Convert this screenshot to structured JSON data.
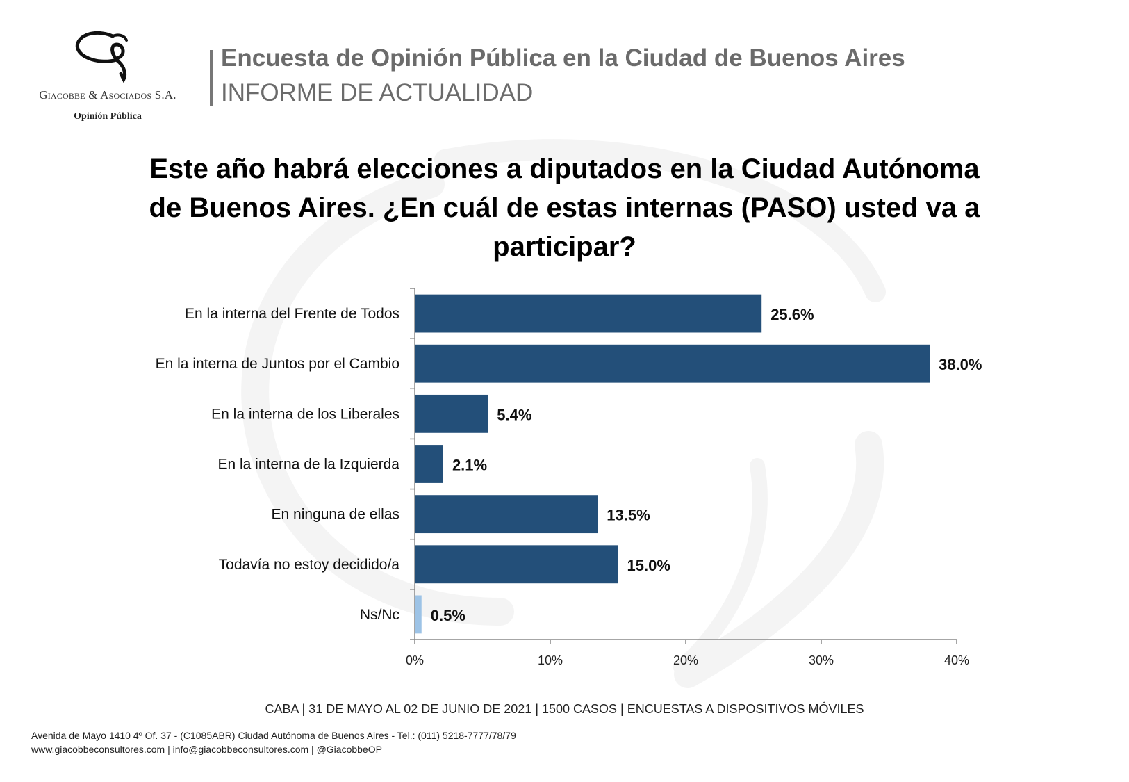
{
  "header": {
    "company_name": "Giacobbe & Asociados S.A.",
    "company_tagline": "Opinión Pública",
    "title": "Encuesta de Opinión Pública en la Ciudad de Buenos Aires",
    "subtitle": "INFORME DE ACTUALIDAD"
  },
  "question": "Este año habrá elecciones a diputados en la Ciudad Autónoma de Buenos Aires. ¿En cuál de estas internas (PASO) usted va a participar?",
  "chart_data": {
    "type": "bar",
    "orientation": "horizontal",
    "categories": [
      "En la interna del Frente de Todos",
      "En la interna de Juntos por el Cambio",
      "En la interna de los Liberales",
      "En la interna de la Izquierda",
      "En ninguna de ellas",
      "Todavía no estoy decidido/a",
      "Ns/Nc"
    ],
    "values": [
      25.6,
      38.0,
      5.4,
      2.1,
      13.5,
      15.0,
      0.5
    ],
    "value_labels": [
      "25.6%",
      "38.0%",
      "5.4%",
      "2.1%",
      "13.5%",
      "15.0%",
      "0.5%"
    ],
    "xlim": [
      0,
      40
    ],
    "xticks": [
      0,
      10,
      20,
      30,
      40
    ],
    "xtick_labels": [
      "0%",
      "10%",
      "20%",
      "30%",
      "40%"
    ],
    "colors": {
      "bar": "#234f79",
      "bar_highlight": "#9dc3e6"
    },
    "bar_colors": [
      "#234f79",
      "#234f79",
      "#234f79",
      "#234f79",
      "#234f79",
      "#234f79",
      "#9dc3e6"
    ],
    "grid": false
  },
  "footer": {
    "survey_info": "CABA | 31 DE MAYO AL 02 DE JUNIO DE 2021 | 1500 CASOS | ENCUESTAS A DISPOSITIVOS MÓVILES",
    "address": "Avenida de Mayo 1410 4º Of. 37 - (C1085ABR) Ciudad Autónoma de Buenos Aires - Tel.: (011) 5218-7777/78/79",
    "contacts": "www.giacobbeconsultores.com | info@giacobbeconsultores.com | @GiacobbeOP"
  }
}
